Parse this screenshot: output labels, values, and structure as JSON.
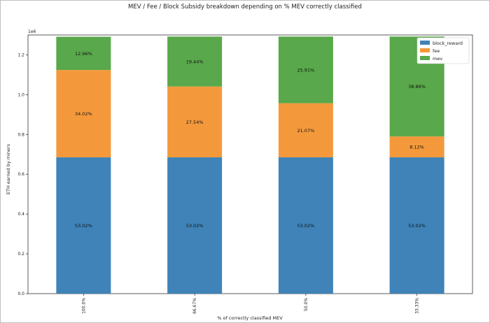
{
  "chart_data": {
    "type": "bar",
    "stacked": true,
    "title": "MEV / Fee / Block Subsidy breakdown depending on % MEV correctly classified",
    "xlabel": "% of correctly classified MEV",
    "ylabel": "ETH earned by miners",
    "y_scale_label": "1e6",
    "categories": [
      "100.0%",
      "66.67%",
      "50.0%",
      "33.33%"
    ],
    "ylim": [
      0,
      1.3
    ],
    "yticks": [
      0.0,
      0.2,
      0.4,
      0.6,
      0.8,
      1.0,
      1.2
    ],
    "ytick_labels": [
      "0.0",
      "0.2",
      "0.4",
      "0.6",
      "0.8",
      "1.0",
      "1.2"
    ],
    "series": [
      {
        "name": "block_reward",
        "color": "#3f83b8",
        "values": [
          0.685,
          0.685,
          0.685,
          0.685
        ],
        "labels": [
          "53.02%",
          "53.02%",
          "53.02%",
          "53.02%"
        ]
      },
      {
        "name": "fee",
        "color": "#f4993b",
        "values": [
          0.439,
          0.356,
          0.272,
          0.105
        ],
        "labels": [
          "34.02%",
          "27.54%",
          "21.07%",
          "8.12%"
        ]
      },
      {
        "name": "mev",
        "color": "#59a84b",
        "values": [
          0.167,
          0.251,
          0.335,
          0.502
        ],
        "labels": [
          "12.96%",
          "19.44%",
          "25.91%",
          "38.86%"
        ]
      }
    ],
    "legend": "top-right",
    "grid": false
  }
}
